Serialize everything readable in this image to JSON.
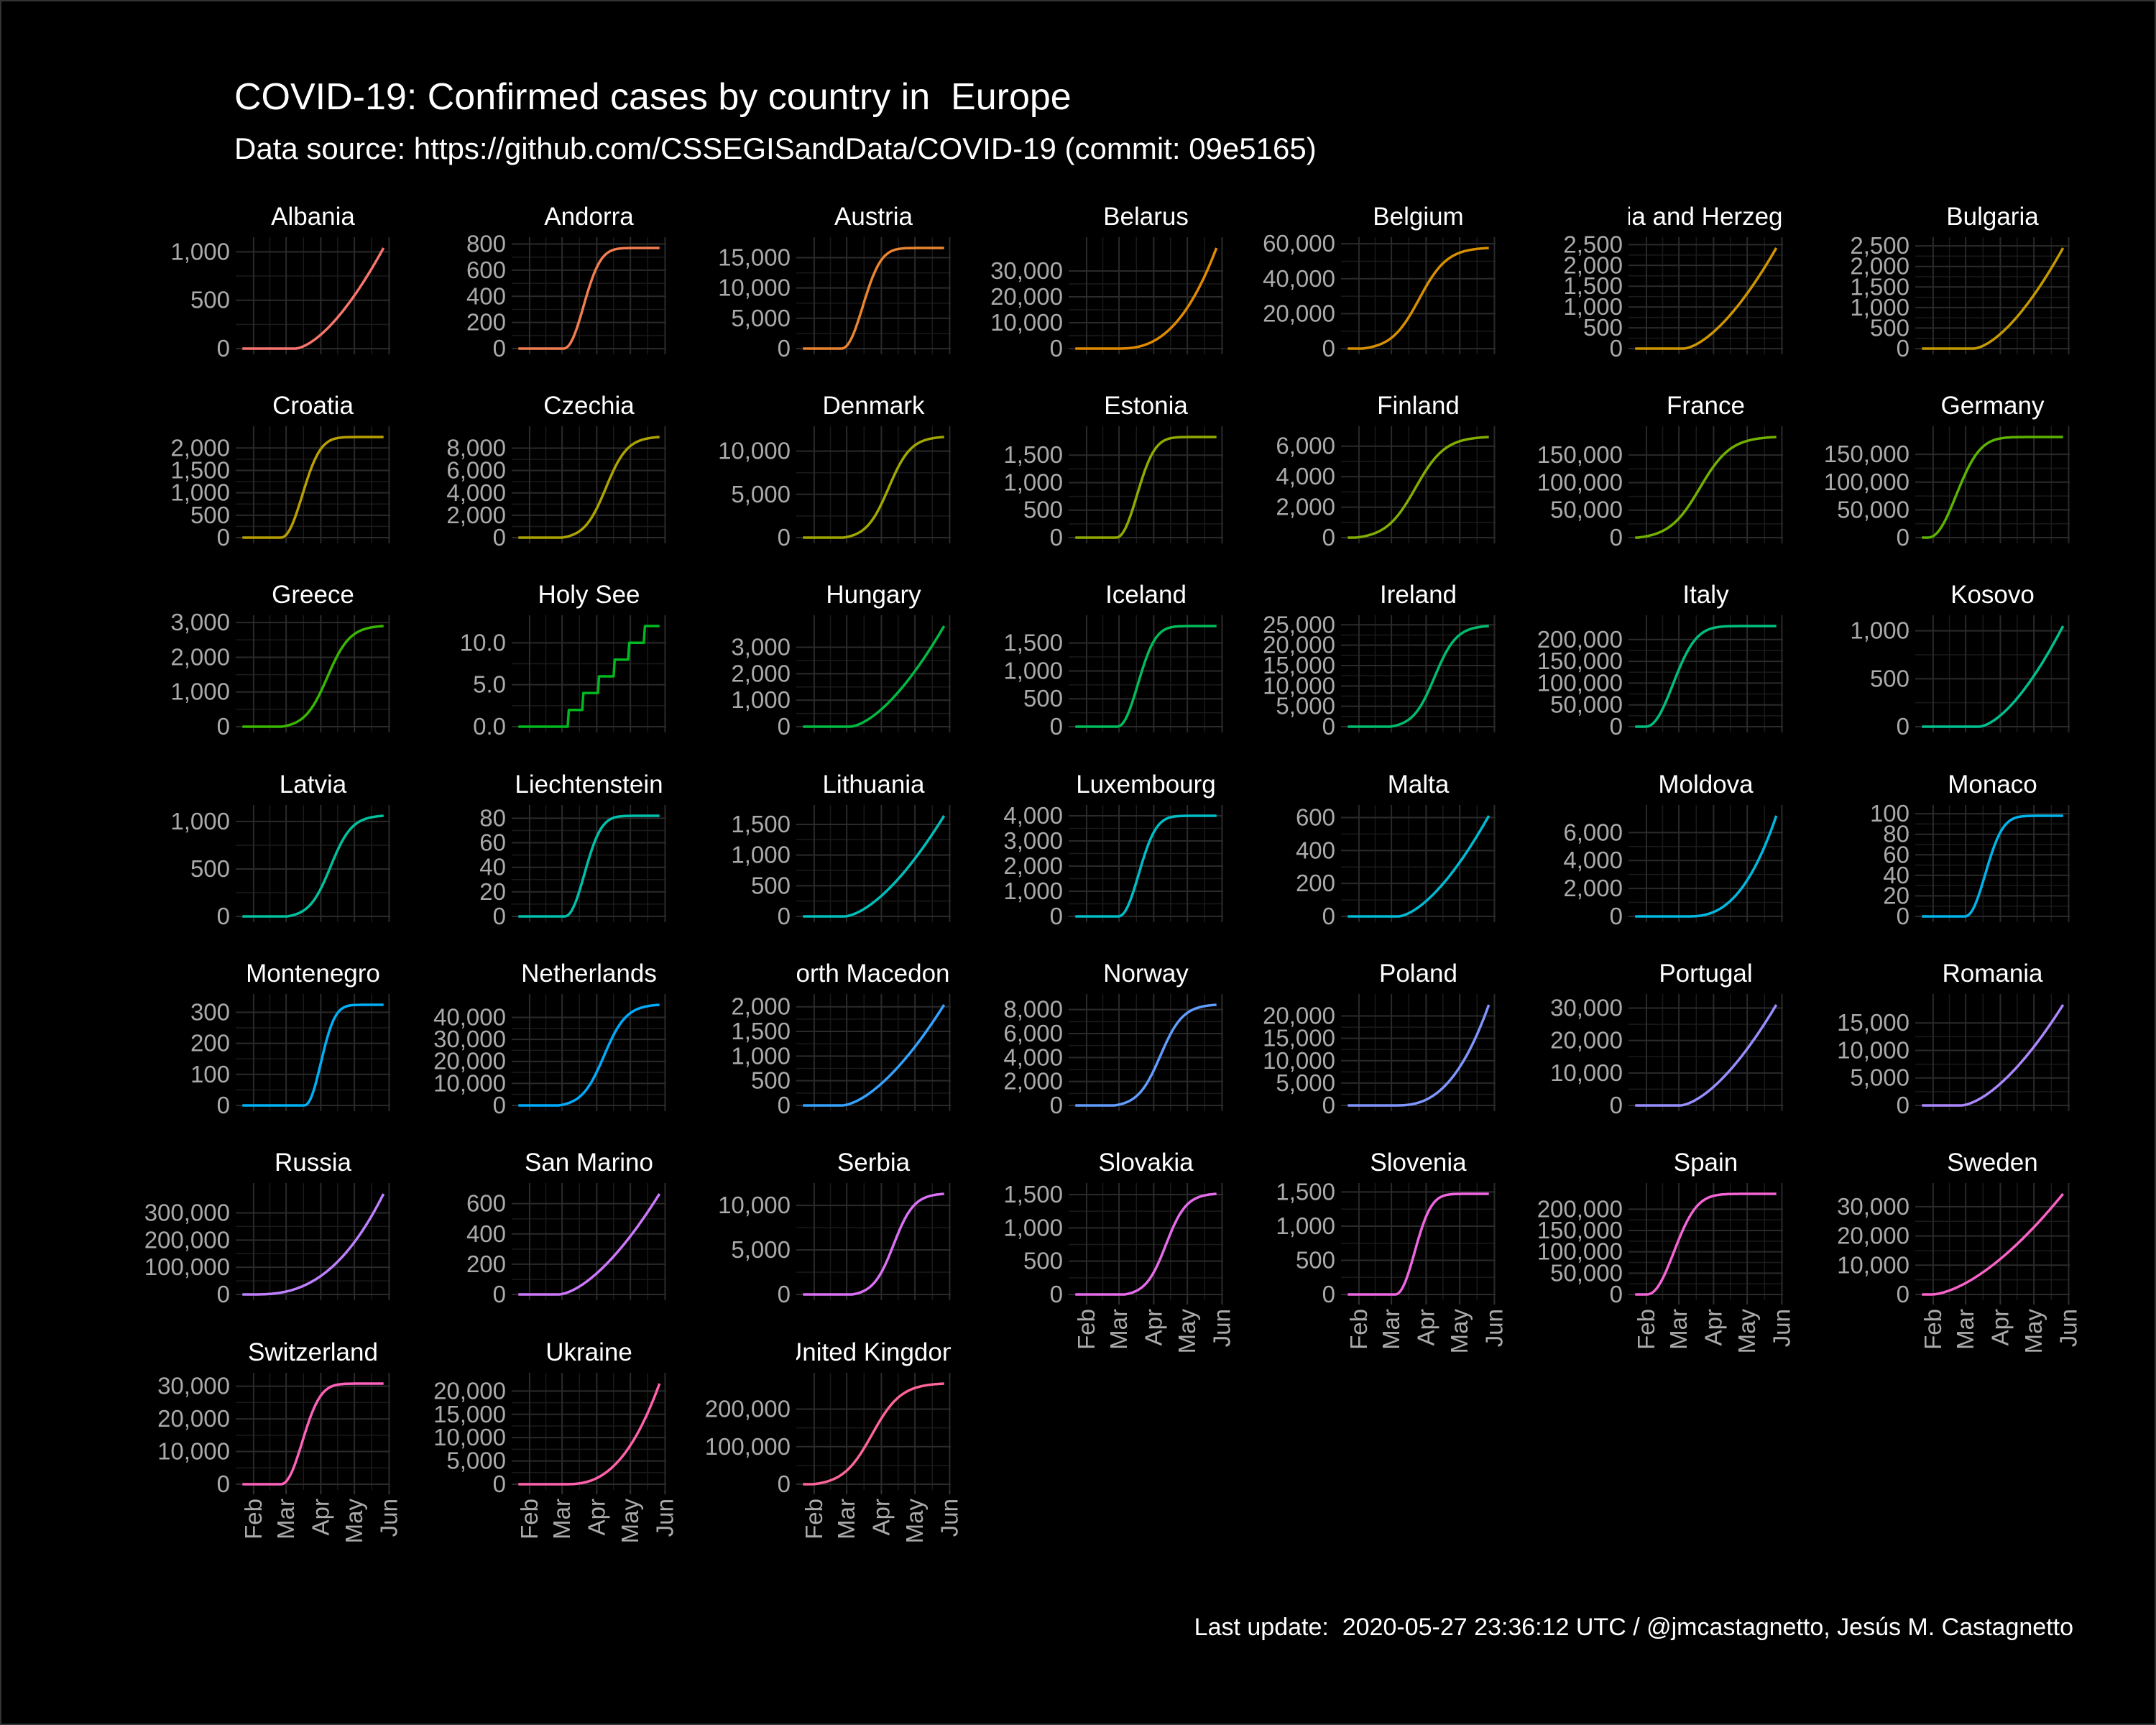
{
  "title": "COVID-19: Confirmed cases by country in  Europe",
  "subtitle": "Data source: https://github.com/CSSEGISandData/COVID-19 (commit: 09e5165)",
  "caption": "Last update:  2020-05-27 23:36:12 UTC / @jmcastagnetto, Jesús M. Castagnetto",
  "chart_data": {
    "type": "line",
    "layout": "facet_wrap",
    "x_tick_labels": [
      "Feb",
      "Mar",
      "Apr",
      "May",
      "Jun"
    ],
    "x_range": [
      "2020-01-22",
      "2020-05-27"
    ],
    "grid": true,
    "panels": [
      {
        "name": "Albania",
        "ymax": 1040,
        "yticks": [
          0,
          500,
          1000
        ],
        "ylabels": [
          "0",
          "500",
          "1,000"
        ],
        "start": "2020-03-09",
        "shape": "late",
        "color": "#F8766D"
      },
      {
        "name": "Andorra",
        "ymax": 770,
        "yticks": [
          0,
          200,
          400,
          600,
          800
        ],
        "ylabels": [
          "0",
          "200",
          "400",
          "600",
          "800"
        ],
        "start": "2020-03-02",
        "shape": "plateau",
        "color": "#F17D50"
      },
      {
        "name": "Austria",
        "ymax": 16600,
        "yticks": [
          0,
          5000,
          10000,
          15000
        ],
        "ylabels": [
          "0",
          "5,000",
          "10,000",
          "15,000"
        ],
        "start": "2020-02-25",
        "shape": "plateau",
        "color": "#E98530"
      },
      {
        "name": "Belarus",
        "ymax": 38900,
        "yticks": [
          0,
          10000,
          20000,
          30000
        ],
        "ylabels": [
          "0",
          "10,000",
          "20,000",
          "30,000"
        ],
        "start": "2020-02-28",
        "shape": "exp",
        "color": "#E18A00"
      },
      {
        "name": "Belgium",
        "ymax": 57600,
        "yticks": [
          0,
          20000,
          40000,
          60000
        ],
        "ylabels": [
          "0",
          "20,000",
          "40,000",
          "60,000"
        ],
        "start": "2020-02-04",
        "shape": "mid",
        "color": "#D79000"
      },
      {
        "name": "Bosnia and Herzegovina",
        "ymax": 2420,
        "yticks": [
          0,
          500,
          1000,
          1500,
          2000,
          2500
        ],
        "ylabels": [
          "0",
          "500",
          "1,000",
          "1,500",
          "2,000",
          "2,500"
        ],
        "start": "2020-03-05",
        "shape": "late",
        "color": "#CE9600"
      },
      {
        "name": "Bulgaria",
        "ymax": 2450,
        "yticks": [
          0,
          500,
          1000,
          1500,
          2000,
          2500
        ],
        "ylabels": [
          "0",
          "500",
          "1,000",
          "1,500",
          "2,000",
          "2,500"
        ],
        "start": "2020-03-08",
        "shape": "late",
        "color": "#C49A00"
      },
      {
        "name": "Croatia",
        "ymax": 2245,
        "yticks": [
          0,
          500,
          1000,
          1500,
          2000
        ],
        "ylabels": [
          "0",
          "500",
          "1,000",
          "1,500",
          "2,000"
        ],
        "start": "2020-02-25",
        "shape": "plateau",
        "color": "#B8A000"
      },
      {
        "name": "Czechia",
        "ymax": 9000,
        "yticks": [
          0,
          2000,
          4000,
          6000,
          8000
        ],
        "ylabels": [
          "0",
          "2,000",
          "4,000",
          "6,000",
          "8,000"
        ],
        "start": "2020-03-01",
        "shape": "mid",
        "color": "#ADA300"
      },
      {
        "name": "Denmark",
        "ymax": 11630,
        "yticks": [
          0,
          5000,
          10000
        ],
        "ylabels": [
          "0",
          "5,000",
          "10,000"
        ],
        "start": "2020-02-27",
        "shape": "mid",
        "color": "#A0A700"
      },
      {
        "name": "Estonia",
        "ymax": 1830,
        "yticks": [
          0,
          500,
          1000,
          1500
        ],
        "ylabels": [
          "0",
          "500",
          "1,000",
          "1,500"
        ],
        "start": "2020-02-27",
        "shape": "plateau",
        "color": "#92AA00"
      },
      {
        "name": "Finland",
        "ymax": 6600,
        "yticks": [
          0,
          2000,
          4000,
          6000
        ],
        "ylabels": [
          "0",
          "2,000",
          "4,000",
          "6,000"
        ],
        "start": "2020-01-29",
        "shape": "mid",
        "color": "#83AD00"
      },
      {
        "name": "France",
        "ymax": 182900,
        "yticks": [
          0,
          50000,
          100000,
          150000
        ],
        "ylabels": [
          "0",
          "50,000",
          "100,000",
          "150,000"
        ],
        "start": "2020-01-24",
        "shape": "mid",
        "color": "#72B000"
      },
      {
        "name": "Germany",
        "ymax": 181300,
        "yticks": [
          0,
          50000,
          100000,
          150000
        ],
        "ylabels": [
          "0",
          "50,000",
          "100,000",
          "150,000"
        ],
        "start": "2020-01-27",
        "shape": "plateau",
        "color": "#5DB300"
      },
      {
        "name": "Greece",
        "ymax": 2900,
        "yticks": [
          0,
          1000,
          2000,
          3000
        ],
        "ylabels": [
          "0",
          "1,000",
          "2,000",
          "3,000"
        ],
        "start": "2020-02-26",
        "shape": "mid",
        "color": "#39B600"
      },
      {
        "name": "Holy See",
        "ymax": 12,
        "yticks": [
          0,
          5,
          10
        ],
        "ylabels": [
          "0.0",
          "5.0",
          "10.0"
        ],
        "start": "2020-03-06",
        "shape": "step",
        "color": "#00B81F"
      },
      {
        "name": "Hungary",
        "ymax": 3800,
        "yticks": [
          0,
          1000,
          2000,
          3000
        ],
        "ylabels": [
          "0",
          "1,000",
          "2,000",
          "3,000"
        ],
        "start": "2020-03-04",
        "shape": "late",
        "color": "#00BA42"
      },
      {
        "name": "Iceland",
        "ymax": 1805,
        "yticks": [
          0,
          500,
          1000,
          1500
        ],
        "ylabels": [
          "0",
          "500",
          "1,000",
          "1,500"
        ],
        "start": "2020-02-28",
        "shape": "plateau",
        "color": "#00BC59"
      },
      {
        "name": "Ireland",
        "ymax": 24700,
        "yticks": [
          0,
          5000,
          10000,
          15000,
          20000,
          25000
        ],
        "ylabels": [
          "0",
          "5,000",
          "10,000",
          "15,000",
          "20,000",
          "25,000"
        ],
        "start": "2020-02-29",
        "shape": "mid",
        "color": "#00BD6D"
      },
      {
        "name": "Italy",
        "ymax": 231000,
        "yticks": [
          0,
          50000,
          100000,
          150000,
          200000
        ],
        "ylabels": [
          "0",
          "50,000",
          "100,000",
          "150,000",
          "200,000"
        ],
        "start": "2020-01-31",
        "shape": "plateau",
        "color": "#00BF7D"
      },
      {
        "name": "Kosovo",
        "ymax": 1050,
        "yticks": [
          0,
          500,
          1000
        ],
        "ylabels": [
          "0",
          "500",
          "1,000"
        ],
        "start": "2020-03-13",
        "shape": "late",
        "color": "#00C08E"
      },
      {
        "name": "Latvia",
        "ymax": 1060,
        "yticks": [
          0,
          500,
          1000
        ],
        "ylabels": [
          "0",
          "500",
          "1,000"
        ],
        "start": "2020-03-02",
        "shape": "mid",
        "color": "#00C09D"
      },
      {
        "name": "Liechtenstein",
        "ymax": 82,
        "yticks": [
          0,
          20,
          40,
          60,
          80
        ],
        "ylabels": [
          "0",
          "20",
          "40",
          "60",
          "80"
        ],
        "start": "2020-03-03",
        "shape": "plateau",
        "color": "#00C0AC"
      },
      {
        "name": "Lithuania",
        "ymax": 1640,
        "yticks": [
          0,
          500,
          1000,
          1500
        ],
        "ylabels": [
          "0",
          "500",
          "1,000",
          "1,500"
        ],
        "start": "2020-02-28",
        "shape": "late",
        "color": "#00BFBA"
      },
      {
        "name": "Luxembourg",
        "ymax": 4000,
        "yticks": [
          0,
          1000,
          2000,
          3000,
          4000
        ],
        "ylabels": [
          "0",
          "1,000",
          "2,000",
          "3,000",
          "4,000"
        ],
        "start": "2020-02-29",
        "shape": "plateau",
        "color": "#00BDC7"
      },
      {
        "name": "Malta",
        "ymax": 611,
        "yticks": [
          0,
          200,
          400,
          600
        ],
        "ylabels": [
          "0",
          "200",
          "400",
          "600"
        ],
        "start": "2020-03-07",
        "shape": "late",
        "color": "#00BBD4"
      },
      {
        "name": "Moldova",
        "ymax": 7200,
        "yticks": [
          0,
          2000,
          4000,
          6000
        ],
        "ylabels": [
          "0",
          "2,000",
          "4,000",
          "6,000"
        ],
        "start": "2020-03-08",
        "shape": "exp",
        "color": "#00B8E0"
      },
      {
        "name": "Monaco",
        "ymax": 98,
        "yticks": [
          0,
          20,
          40,
          60,
          80,
          100
        ],
        "ylabels": [
          "0",
          "20",
          "40",
          "60",
          "80",
          "100"
        ],
        "start": "2020-02-29",
        "shape": "plateau",
        "color": "#00B4EB"
      },
      {
        "name": "Montenegro",
        "ymax": 324,
        "yticks": [
          0,
          100,
          200,
          300
        ],
        "ylabels": [
          "0",
          "100",
          "200",
          "300"
        ],
        "start": "2020-03-17",
        "shape": "plateau",
        "color": "#00B0F6"
      },
      {
        "name": "Netherlands",
        "ymax": 45700,
        "yticks": [
          0,
          10000,
          20000,
          30000,
          40000
        ],
        "ylabels": [
          "0",
          "10,000",
          "20,000",
          "30,000",
          "40,000"
        ],
        "start": "2020-02-27",
        "shape": "mid",
        "color": "#00ABFD"
      },
      {
        "name": "North Macedonia",
        "ymax": 2040,
        "yticks": [
          0,
          500,
          1000,
          1500,
          2000
        ],
        "ylabels": [
          "0",
          "500",
          "1,000",
          "1,500",
          "2,000"
        ],
        "start": "2020-02-26",
        "shape": "late",
        "color": "#35A2FF"
      },
      {
        "name": "Norway",
        "ymax": 8400,
        "yticks": [
          0,
          2000,
          4000,
          6000,
          8000
        ],
        "ylabels": [
          "0",
          "2,000",
          "4,000",
          "6,000",
          "8,000"
        ],
        "start": "2020-02-26",
        "shape": "mid",
        "color": "#619CFF"
      },
      {
        "name": "Poland",
        "ymax": 22500,
        "yticks": [
          0,
          5000,
          10000,
          15000,
          20000
        ],
        "ylabels": [
          "0",
          "5,000",
          "10,000",
          "15,000",
          "20,000"
        ],
        "start": "2020-03-04",
        "shape": "exp",
        "color": "#7F96FF"
      },
      {
        "name": "Portugal",
        "ymax": 31000,
        "yticks": [
          0,
          10000,
          20000,
          30000
        ],
        "ylabels": [
          "0",
          "10,000",
          "20,000",
          "30,000"
        ],
        "start": "2020-03-02",
        "shape": "late",
        "color": "#978FFF"
      },
      {
        "name": "Romania",
        "ymax": 18300,
        "yticks": [
          0,
          5000,
          10000,
          15000
        ],
        "ylabels": [
          "0",
          "5,000",
          "10,000",
          "15,000"
        ],
        "start": "2020-02-26",
        "shape": "late",
        "color": "#AC88FF"
      },
      {
        "name": "Russia",
        "ymax": 370000,
        "yticks": [
          0,
          100000,
          200000,
          300000
        ],
        "ylabels": [
          "0",
          "100,000",
          "200,000",
          "300,000"
        ],
        "start": "2020-01-31",
        "shape": "exp",
        "color": "#BE80FF"
      },
      {
        "name": "San Marino",
        "ymax": 665,
        "yticks": [
          0,
          200,
          400,
          600
        ],
        "ylabels": [
          "0",
          "200",
          "400",
          "600"
        ],
        "start": "2020-02-27",
        "shape": "late",
        "color": "#CD78FB"
      },
      {
        "name": "Serbia",
        "ymax": 11300,
        "yticks": [
          0,
          5000,
          10000
        ],
        "ylabels": [
          "0",
          "5,000",
          "10,000"
        ],
        "start": "2020-03-06",
        "shape": "mid",
        "color": "#DA71F4"
      },
      {
        "name": "Slovakia",
        "ymax": 1511,
        "yticks": [
          0,
          500,
          1000,
          1500
        ],
        "ylabels": [
          "0",
          "500",
          "1,000",
          "1,500"
        ],
        "start": "2020-03-06",
        "shape": "mid",
        "color": "#E56BEB"
      },
      {
        "name": "Slovenia",
        "ymax": 1473,
        "yticks": [
          0,
          500,
          1000,
          1500
        ],
        "ylabels": [
          "0",
          "500",
          "1,000",
          "1,500"
        ],
        "start": "2020-03-04",
        "shape": "plateau",
        "color": "#EE66E1"
      },
      {
        "name": "Spain",
        "ymax": 236000,
        "yticks": [
          0,
          50000,
          100000,
          150000,
          200000
        ],
        "ylabels": [
          "0",
          "50,000",
          "100,000",
          "150,000",
          "200,000"
        ],
        "start": "2020-02-01",
        "shape": "plateau",
        "color": "#F564D5"
      },
      {
        "name": "Sweden",
        "ymax": 34400,
        "yticks": [
          0,
          10000,
          20000,
          30000
        ],
        "ylabels": [
          "0",
          "10,000",
          "20,000",
          "30,000"
        ],
        "start": "2020-01-31",
        "shape": "late",
        "color": "#FA62C8"
      },
      {
        "name": "Switzerland",
        "ymax": 30800,
        "yticks": [
          0,
          10000,
          20000,
          30000
        ],
        "ylabels": [
          "0",
          "10,000",
          "20,000",
          "30,000"
        ],
        "start": "2020-02-25",
        "shape": "plateau",
        "color": "#FD61BA"
      },
      {
        "name": "Ukraine",
        "ymax": 21600,
        "yticks": [
          0,
          5000,
          10000,
          15000,
          20000
        ],
        "ylabels": [
          "0",
          "5,000",
          "10,000",
          "15,000",
          "20,000"
        ],
        "start": "2020-03-03",
        "shape": "exp",
        "color": "#FF62AB"
      },
      {
        "name": "United Kingdom",
        "ymax": 268000,
        "yticks": [
          0,
          100000,
          200000
        ],
        "ylabels": [
          "0",
          "100,000",
          "200,000"
        ],
        "start": "2020-01-31",
        "shape": "mid",
        "color": "#FF649A"
      }
    ]
  }
}
